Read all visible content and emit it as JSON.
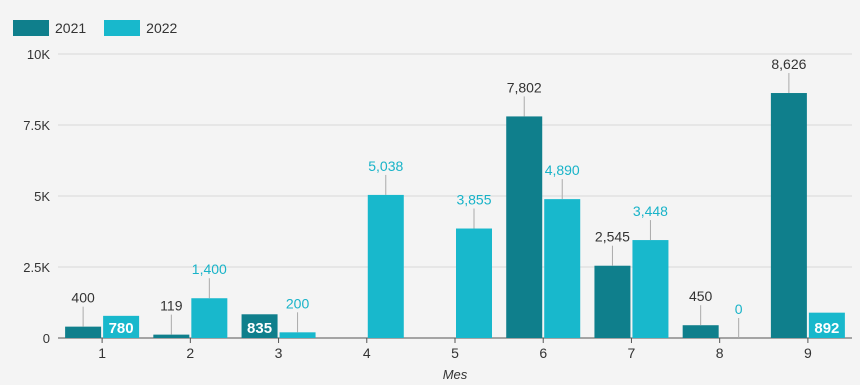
{
  "colors": {
    "s2021": "#0f7f8c",
    "s2022": "#18b8cc",
    "grid": "#d9d9d9",
    "axis": "#555555",
    "label2021": "#333333",
    "label2022": "#18b3c8"
  },
  "chart_data": {
    "type": "bar",
    "xlabel": "Mes",
    "ylabel": "",
    "ylim": [
      0,
      10000
    ],
    "yticks": [
      {
        "value": 0,
        "label": "0"
      },
      {
        "value": 2500,
        "label": "2.5K"
      },
      {
        "value": 5000,
        "label": "5K"
      },
      {
        "value": 7500,
        "label": "7.5K"
      },
      {
        "value": 10000,
        "label": "10K"
      }
    ],
    "categories": [
      "1",
      "2",
      "3",
      "4",
      "5",
      "6",
      "7",
      "8",
      "9"
    ],
    "legend_position": "top-left",
    "grid": true,
    "series": [
      {
        "name": "2021",
        "values": [
          400,
          119,
          835,
          null,
          null,
          7802,
          2545,
          450,
          8626
        ],
        "labels": [
          "400",
          "119",
          "835",
          "",
          "",
          "7,802",
          "2,545",
          "450",
          "8,626"
        ]
      },
      {
        "name": "2022",
        "values": [
          780,
          1400,
          200,
          5038,
          3855,
          4890,
          3448,
          0,
          892
        ],
        "labels": [
          "780",
          "1,400",
          "200",
          "5,038",
          "3,855",
          "4,890",
          "3,448",
          "0",
          "892"
        ]
      }
    ]
  }
}
